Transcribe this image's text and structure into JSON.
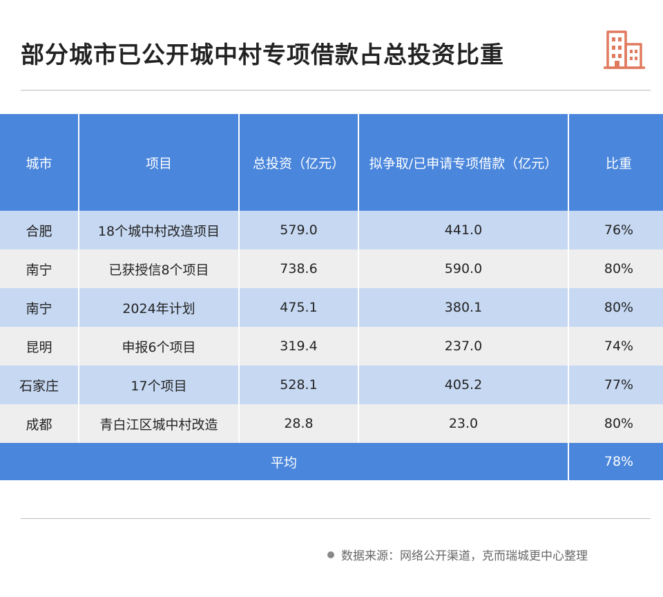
{
  "title": "部分城市已公开城中村专项借款占总投资比重",
  "colors": {
    "header": "#4a86dc",
    "row_odd": "#c6d8f2",
    "row_even": "#eeeeee",
    "icon": "#e07a5f"
  },
  "icon": "building-icon",
  "chart_data": {
    "type": "table",
    "columns": [
      "城市",
      "项目",
      "总投资（亿元）",
      "拟争取/已申请专项借款（亿元）",
      "比重"
    ],
    "rows": [
      [
        "合肥",
        "18个城中村改造项目",
        "579.0",
        "441.0",
        "76%"
      ],
      [
        "南宁",
        "已获授信8个项目",
        "738.6",
        "590.0",
        "80%"
      ],
      [
        "南宁",
        "2024年计划",
        "475.1",
        "380.1",
        "80%"
      ],
      [
        "昆明",
        "申报6个项目",
        "319.4",
        "237.0",
        "74%"
      ],
      [
        "石家庄",
        "17个项目",
        "528.1",
        "405.2",
        "77%"
      ],
      [
        "成都",
        "青白江区城中村改造",
        "28.8",
        "23.0",
        "80%"
      ]
    ],
    "summary": {
      "label": "平均",
      "value": "78%"
    }
  },
  "source": "数据来源：网络公开渠道，克而瑞城更中心整理"
}
